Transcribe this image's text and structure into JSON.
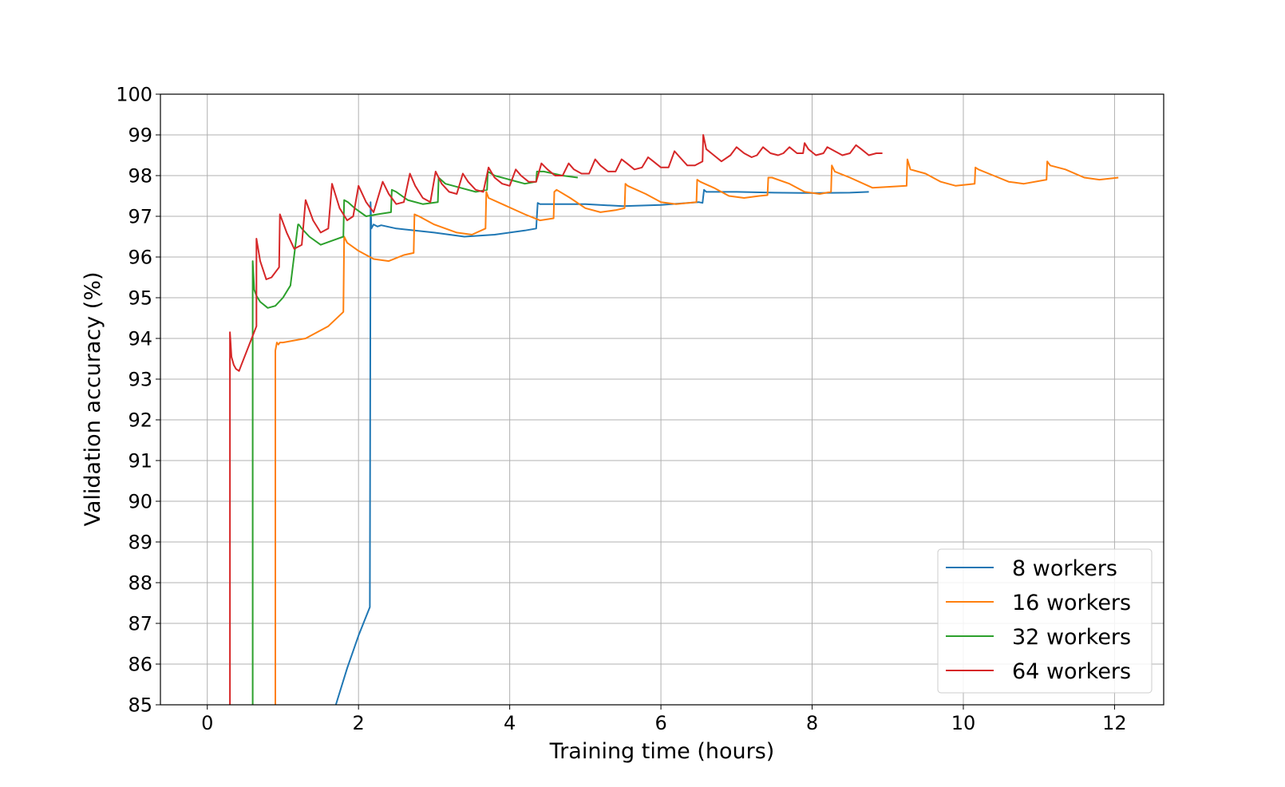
{
  "chart_data": {
    "type": "line",
    "xlabel": "Training time (hours)",
    "ylabel": "Validation accuracy (%)",
    "xlim": [
      -0.62,
      12.65
    ],
    "ylim": [
      85,
      100
    ],
    "xticks": [
      "0",
      "2",
      "4",
      "6",
      "8",
      "10",
      "12"
    ],
    "yticks": [
      "85",
      "86",
      "87",
      "88",
      "89",
      "90",
      "91",
      "92",
      "93",
      "94",
      "95",
      "96",
      "97",
      "98",
      "99",
      "100"
    ],
    "grid": true,
    "legend_position": "bottom-right",
    "series": [
      {
        "name": "8 workers",
        "color": "#1f77b4",
        "x": [
          1.7,
          1.85,
          2.0,
          2.15,
          2.16,
          2.17,
          2.2,
          2.25,
          2.3,
          2.5,
          3.0,
          3.4,
          3.8,
          4.2,
          4.35,
          4.37,
          4.4,
          4.6,
          5.0,
          5.5,
          6.0,
          6.5,
          6.55,
          6.57,
          6.6,
          6.7,
          7.0,
          7.5,
          8.0,
          8.5,
          8.75
        ],
        "y": [
          85.0,
          85.9,
          86.7,
          87.4,
          97.35,
          96.7,
          96.8,
          96.75,
          96.78,
          96.7,
          96.6,
          96.5,
          96.55,
          96.65,
          96.7,
          97.33,
          97.3,
          97.3,
          97.3,
          97.25,
          97.28,
          97.35,
          97.33,
          97.65,
          97.6,
          97.6,
          97.6,
          97.58,
          97.57,
          97.58,
          97.6
        ]
      },
      {
        "name": "16 workers",
        "color": "#ff7f0e",
        "x": [
          0.9,
          0.9,
          0.92,
          0.94,
          0.96,
          1.0,
          1.3,
          1.6,
          1.8,
          1.81,
          1.85,
          2.0,
          2.2,
          2.4,
          2.6,
          2.73,
          2.74,
          2.8,
          3.0,
          3.3,
          3.5,
          3.68,
          3.69,
          3.72,
          3.9,
          4.2,
          4.4,
          4.58,
          4.59,
          4.62,
          4.8,
          5.0,
          5.2,
          5.4,
          5.52,
          5.53,
          5.56,
          5.8,
          6.0,
          6.2,
          6.47,
          6.48,
          6.52,
          6.7,
          6.9,
          7.1,
          7.3,
          7.41,
          7.42,
          7.47,
          7.7,
          7.9,
          8.1,
          8.25,
          8.26,
          8.3,
          8.5,
          8.8,
          9.25,
          9.26,
          9.3,
          9.5,
          9.7,
          9.9,
          10.15,
          10.16,
          10.2,
          10.4,
          10.6,
          10.8,
          11.1,
          11.11,
          11.15,
          11.35,
          11.6,
          11.8,
          12.05
        ],
        "y": [
          85.0,
          93.7,
          93.9,
          93.85,
          93.9,
          93.9,
          94.0,
          94.3,
          94.65,
          96.5,
          96.35,
          96.15,
          95.95,
          95.9,
          96.05,
          96.1,
          97.05,
          97.0,
          96.8,
          96.6,
          96.55,
          96.7,
          97.6,
          97.45,
          97.3,
          97.05,
          96.9,
          96.95,
          97.6,
          97.65,
          97.45,
          97.2,
          97.1,
          97.15,
          97.2,
          97.8,
          97.75,
          97.55,
          97.35,
          97.3,
          97.35,
          97.9,
          97.85,
          97.7,
          97.5,
          97.45,
          97.5,
          97.52,
          97.95,
          97.95,
          97.8,
          97.6,
          97.55,
          97.6,
          98.25,
          98.1,
          97.95,
          97.7,
          97.75,
          98.4,
          98.15,
          98.05,
          97.85,
          97.75,
          97.8,
          98.2,
          98.15,
          98.0,
          97.85,
          97.8,
          97.9,
          98.35,
          98.25,
          98.15,
          97.95,
          97.9,
          97.95
        ]
      },
      {
        "name": "32 workers",
        "color": "#2ca02c",
        "x": [
          0.6,
          0.6,
          0.62,
          0.65,
          0.7,
          0.8,
          0.9,
          1.0,
          1.1,
          1.2,
          1.21,
          1.25,
          1.35,
          1.5,
          1.65,
          1.8,
          1.81,
          1.86,
          1.95,
          2.1,
          2.25,
          2.43,
          2.44,
          2.5,
          2.65,
          2.85,
          3.05,
          3.06,
          3.15,
          3.35,
          3.55,
          3.7,
          3.71,
          3.8,
          4.0,
          4.2,
          4.35,
          4.36,
          4.45,
          4.7,
          4.9
        ],
        "y": [
          85.0,
          95.9,
          95.2,
          95.05,
          94.9,
          94.75,
          94.8,
          95.0,
          95.3,
          96.8,
          96.8,
          96.7,
          96.5,
          96.3,
          96.4,
          96.5,
          97.4,
          97.35,
          97.2,
          97.0,
          97.05,
          97.1,
          97.65,
          97.6,
          97.4,
          97.3,
          97.35,
          97.95,
          97.8,
          97.7,
          97.6,
          97.65,
          98.1,
          98.0,
          97.9,
          97.8,
          97.85,
          98.1,
          98.1,
          98.0,
          97.95
        ]
      },
      {
        "name": "64 workers",
        "color": "#d62728",
        "x": [
          0.3,
          0.3,
          0.32,
          0.35,
          0.38,
          0.42,
          0.45,
          0.65,
          0.65,
          0.7,
          0.78,
          0.85,
          0.95,
          0.96,
          1.05,
          1.15,
          1.25,
          1.3,
          1.4,
          1.5,
          1.6,
          1.65,
          1.75,
          1.85,
          1.93,
          2.0,
          2.1,
          2.2,
          2.32,
          2.4,
          2.5,
          2.6,
          2.68,
          2.75,
          2.85,
          2.95,
          3.02,
          3.1,
          3.2,
          3.3,
          3.38,
          3.45,
          3.55,
          3.65,
          3.72,
          3.8,
          3.9,
          4.0,
          4.08,
          4.15,
          4.25,
          4.35,
          4.42,
          4.5,
          4.6,
          4.7,
          4.78,
          4.85,
          4.95,
          5.05,
          5.13,
          5.2,
          5.3,
          5.4,
          5.48,
          5.55,
          5.65,
          5.75,
          5.83,
          5.9,
          6.0,
          6.1,
          6.18,
          6.25,
          6.35,
          6.45,
          6.55,
          6.56,
          6.6,
          6.7,
          6.8,
          6.92,
          7.0,
          7.1,
          7.2,
          7.27,
          7.35,
          7.45,
          7.55,
          7.62,
          7.7,
          7.8,
          7.88,
          7.9,
          7.95,
          8.05,
          8.15,
          8.2,
          8.3,
          8.4,
          8.5,
          8.58,
          8.65,
          8.75,
          8.85,
          8.93
        ],
        "y": [
          85.0,
          94.15,
          93.55,
          93.35,
          93.25,
          93.2,
          93.35,
          94.3,
          96.45,
          95.9,
          95.45,
          95.5,
          95.75,
          97.05,
          96.6,
          96.2,
          96.3,
          97.4,
          96.9,
          96.6,
          96.7,
          97.8,
          97.2,
          96.9,
          97.0,
          97.75,
          97.35,
          97.1,
          97.85,
          97.55,
          97.3,
          97.35,
          98.05,
          97.75,
          97.45,
          97.35,
          98.1,
          97.8,
          97.6,
          97.55,
          98.05,
          97.85,
          97.65,
          97.6,
          98.2,
          97.95,
          97.8,
          97.75,
          98.15,
          98.0,
          97.85,
          97.85,
          98.3,
          98.15,
          98.0,
          98.0,
          98.3,
          98.15,
          98.05,
          98.05,
          98.4,
          98.25,
          98.1,
          98.1,
          98.4,
          98.3,
          98.15,
          98.2,
          98.45,
          98.35,
          98.2,
          98.2,
          98.6,
          98.45,
          98.25,
          98.25,
          98.35,
          99.0,
          98.65,
          98.5,
          98.35,
          98.5,
          98.7,
          98.55,
          98.45,
          98.5,
          98.7,
          98.55,
          98.5,
          98.55,
          98.7,
          98.55,
          98.55,
          98.8,
          98.65,
          98.5,
          98.55,
          98.7,
          98.6,
          98.5,
          98.55,
          98.75,
          98.65,
          98.5,
          98.55,
          98.55
        ]
      }
    ]
  }
}
